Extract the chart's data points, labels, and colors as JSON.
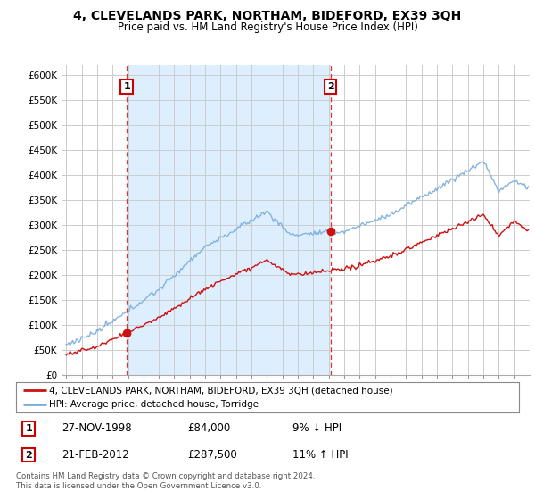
{
  "title": "4, CLEVELANDS PARK, NORTHAM, BIDEFORD, EX39 3QH",
  "subtitle": "Price paid vs. HM Land Registry's House Price Index (HPI)",
  "ylim": [
    0,
    620000
  ],
  "yticks": [
    0,
    50000,
    100000,
    150000,
    200000,
    250000,
    300000,
    350000,
    400000,
    450000,
    500000,
    550000,
    600000
  ],
  "ytick_labels": [
    "£0",
    "£50K",
    "£100K",
    "£150K",
    "£200K",
    "£250K",
    "£300K",
    "£350K",
    "£400K",
    "£450K",
    "£500K",
    "£550K",
    "£600K"
  ],
  "sale1_year": 1998.92,
  "sale1_price": 84000,
  "sale1_label": "1",
  "sale1_date": "27-NOV-1998",
  "sale1_hpi_pct": "9% ↓ HPI",
  "sale2_year": 2012.12,
  "sale2_price": 287500,
  "sale2_label": "2",
  "sale2_date": "21-FEB-2012",
  "sale2_hpi_pct": "11% ↑ HPI",
  "line_color_property": "#cc1111",
  "line_color_hpi": "#7aacdc",
  "vline_color": "#dd3333",
  "highlight_color": "#ddeeff",
  "background_color": "#ffffff",
  "grid_color": "#cccccc",
  "legend_label_property": "4, CLEVELANDS PARK, NORTHAM, BIDEFORD, EX39 3QH (detached house)",
  "legend_label_hpi": "HPI: Average price, detached house, Torridge",
  "footer": "Contains HM Land Registry data © Crown copyright and database right 2024.\nThis data is licensed under the Open Government Licence v3.0."
}
